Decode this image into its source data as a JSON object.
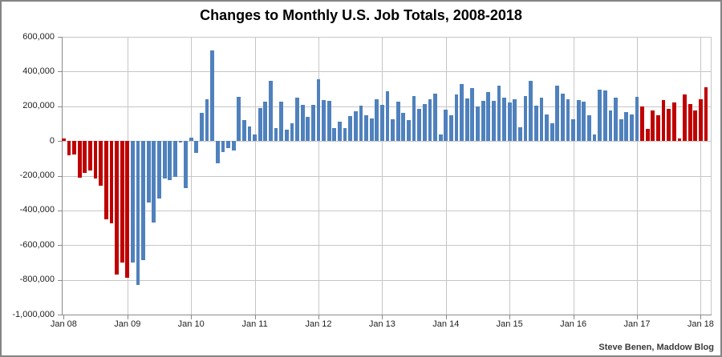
{
  "page": {
    "credit": "Steve Benen, Maddow Blog"
  },
  "chart_data": {
    "type": "bar",
    "title": "Changes to Monthly U.S. Job Totals, 2008-2018",
    "xlabel": "",
    "ylabel": "",
    "ylim": [
      -1000000,
      600000
    ],
    "grid": true,
    "legend": "none",
    "colors": {
      "negative_era_red": "#c00000",
      "blue": "#4f81bd"
    },
    "red_index_ranges": [
      [
        0,
        12
      ],
      [
        109,
        121
      ]
    ],
    "y_tick_values": [
      600000,
      400000,
      200000,
      0,
      -200000,
      -400000,
      -600000,
      -800000,
      -1000000
    ],
    "y_tick_labels": [
      "600,000",
      "400,000",
      "200,000",
      "0",
      "-200,000",
      "-400,000",
      "-600,000",
      "-800,000",
      "-1,000,000"
    ],
    "x_tick_month_index": [
      0,
      12,
      24,
      36,
      48,
      60,
      72,
      84,
      96,
      108,
      120
    ],
    "x_tick_labels": [
      "Jan 08",
      "Jan 09",
      "Jan 10",
      "Jan 11",
      "Jan 12",
      "Jan 13",
      "Jan 14",
      "Jan 15",
      "Jan 16",
      "Jan 17",
      "Jan 18"
    ],
    "months": [
      "2008-01",
      "2008-02",
      "2008-03",
      "2008-04",
      "2008-05",
      "2008-06",
      "2008-07",
      "2008-08",
      "2008-09",
      "2008-10",
      "2008-11",
      "2008-12",
      "2009-01",
      "2009-02",
      "2009-03",
      "2009-04",
      "2009-05",
      "2009-06",
      "2009-07",
      "2009-08",
      "2009-09",
      "2009-10",
      "2009-11",
      "2009-12",
      "2010-01",
      "2010-02",
      "2010-03",
      "2010-04",
      "2010-05",
      "2010-06",
      "2010-07",
      "2010-08",
      "2010-09",
      "2010-10",
      "2010-11",
      "2010-12",
      "2011-01",
      "2011-02",
      "2011-03",
      "2011-04",
      "2011-05",
      "2011-06",
      "2011-07",
      "2011-08",
      "2011-09",
      "2011-10",
      "2011-11",
      "2011-12",
      "2012-01",
      "2012-02",
      "2012-03",
      "2012-04",
      "2012-05",
      "2012-06",
      "2012-07",
      "2012-08",
      "2012-09",
      "2012-10",
      "2012-11",
      "2012-12",
      "2013-01",
      "2013-02",
      "2013-03",
      "2013-04",
      "2013-05",
      "2013-06",
      "2013-07",
      "2013-08",
      "2013-09",
      "2013-10",
      "2013-11",
      "2013-12",
      "2014-01",
      "2014-02",
      "2014-03",
      "2014-04",
      "2014-05",
      "2014-06",
      "2014-07",
      "2014-08",
      "2014-09",
      "2014-10",
      "2014-11",
      "2014-12",
      "2015-01",
      "2015-02",
      "2015-03",
      "2015-04",
      "2015-05",
      "2015-06",
      "2015-07",
      "2015-08",
      "2015-09",
      "2015-10",
      "2015-11",
      "2015-12",
      "2016-01",
      "2016-02",
      "2016-03",
      "2016-04",
      "2016-05",
      "2016-06",
      "2016-07",
      "2016-08",
      "2016-09",
      "2016-10",
      "2016-11",
      "2016-12",
      "2017-01",
      "2017-02",
      "2017-03",
      "2017-04",
      "2017-05",
      "2017-06",
      "2017-07",
      "2017-08",
      "2017-09",
      "2017-10",
      "2017-11",
      "2017-12",
      "2018-01",
      "2018-02"
    ],
    "values": [
      15000,
      -85000,
      -80000,
      -210000,
      -185000,
      -170000,
      -215000,
      -260000,
      -450000,
      -475000,
      -770000,
      -700000,
      -790000,
      -700000,
      -830000,
      -685000,
      -355000,
      -470000,
      -330000,
      -215000,
      -225000,
      -205000,
      -10000,
      -270000,
      20000,
      -70000,
      160000,
      240000,
      520000,
      -130000,
      -65000,
      -40000,
      -55000,
      255000,
      120000,
      85000,
      40000,
      190000,
      225000,
      345000,
      75000,
      225000,
      65000,
      100000,
      250000,
      210000,
      140000,
      210000,
      355000,
      235000,
      230000,
      75000,
      110000,
      75000,
      145000,
      170000,
      205000,
      150000,
      130000,
      240000,
      210000,
      285000,
      125000,
      225000,
      160000,
      120000,
      260000,
      185000,
      215000,
      240000,
      275000,
      40000,
      180000,
      150000,
      270000,
      330000,
      245000,
      305000,
      200000,
      230000,
      280000,
      230000,
      320000,
      250000,
      220000,
      240000,
      80000,
      260000,
      345000,
      205000,
      250000,
      155000,
      100000,
      320000,
      275000,
      240000,
      125000,
      235000,
      225000,
      150000,
      40000,
      295000,
      290000,
      175000,
      250000,
      125000,
      165000,
      155000,
      255000,
      200000,
      70000,
      175000,
      150000,
      235000,
      185000,
      220000,
      15000,
      270000,
      215000,
      175000,
      240000,
      310000
    ]
  }
}
